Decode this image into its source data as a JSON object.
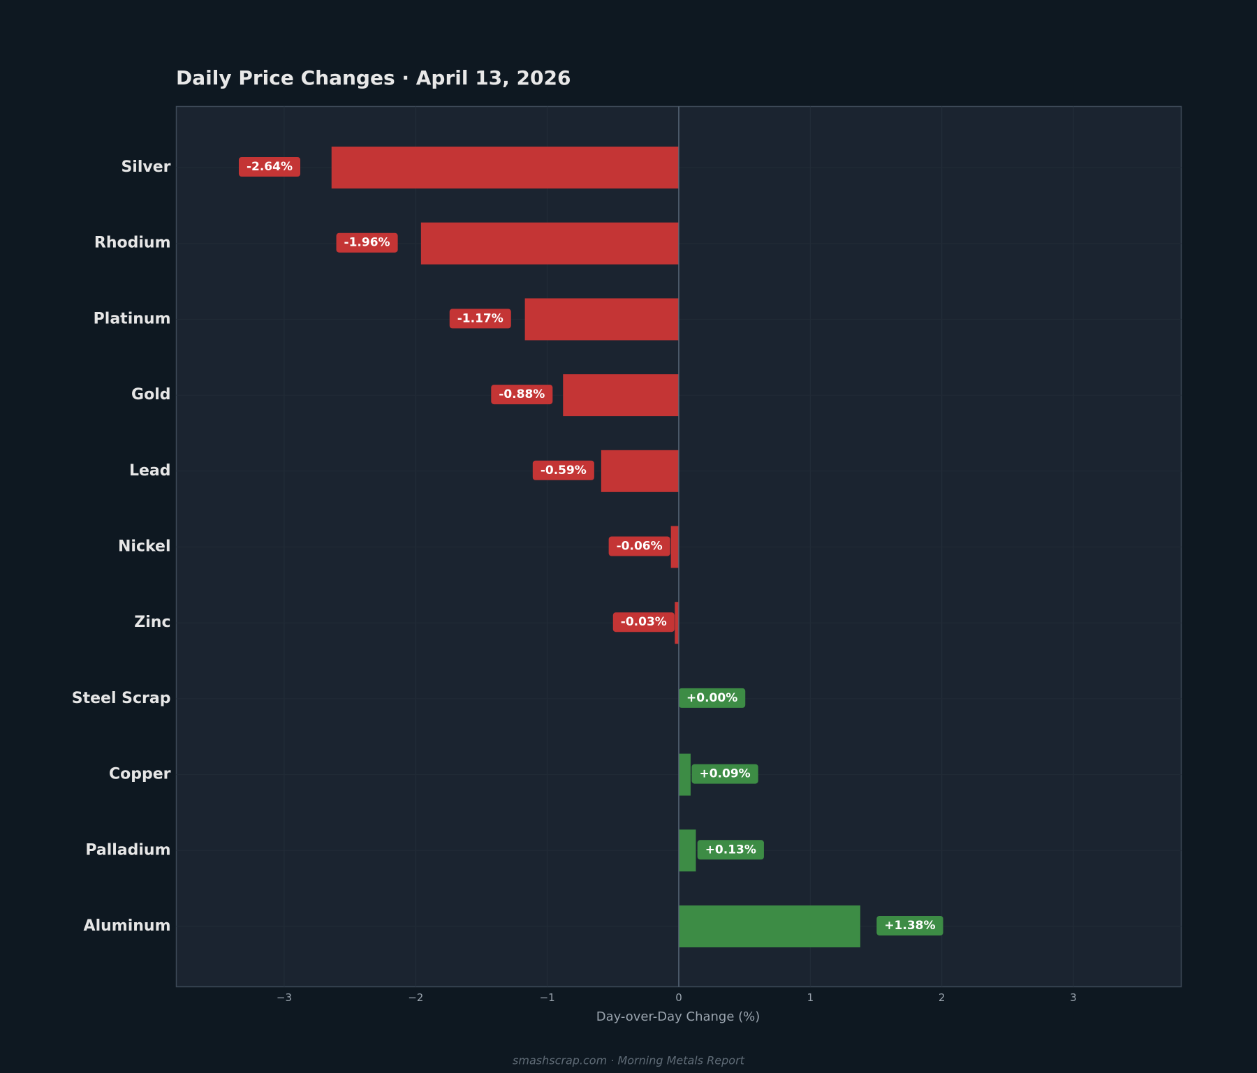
{
  "chart_data": {
    "type": "barh",
    "title": "Daily Price Changes  ·  April 13, 2026",
    "xlabel": "Day-over-Day Change (%)",
    "footer": "smashscrap.com  ·  Morning Metals Report",
    "categories": [
      "Silver",
      "Rhodium",
      "Platinum",
      "Gold",
      "Lead",
      "Nickel",
      "Zinc",
      "Steel Scrap",
      "Copper",
      "Palladium",
      "Aluminum"
    ],
    "values": [
      -2.64,
      -1.96,
      -1.17,
      -0.88,
      -0.59,
      -0.06,
      -0.03,
      0.0,
      0.09,
      0.13,
      1.38
    ],
    "value_labels": [
      "-2.64%",
      "-1.96%",
      "-1.17%",
      "-0.88%",
      "-0.59%",
      "-0.06%",
      "-0.03%",
      "+0.00%",
      "+0.09%",
      "+0.13%",
      "+1.38%"
    ],
    "negative_color": "#c43535",
    "positive_color": "#3d8c45",
    "xlim": [
      -3.82,
      3.82
    ],
    "xticks": [
      {
        "value": -3,
        "label": "−3"
      },
      {
        "value": -2,
        "label": "−2"
      },
      {
        "value": -1,
        "label": "−1"
      },
      0,
      1,
      2,
      3
    ],
    "grid": true
  }
}
